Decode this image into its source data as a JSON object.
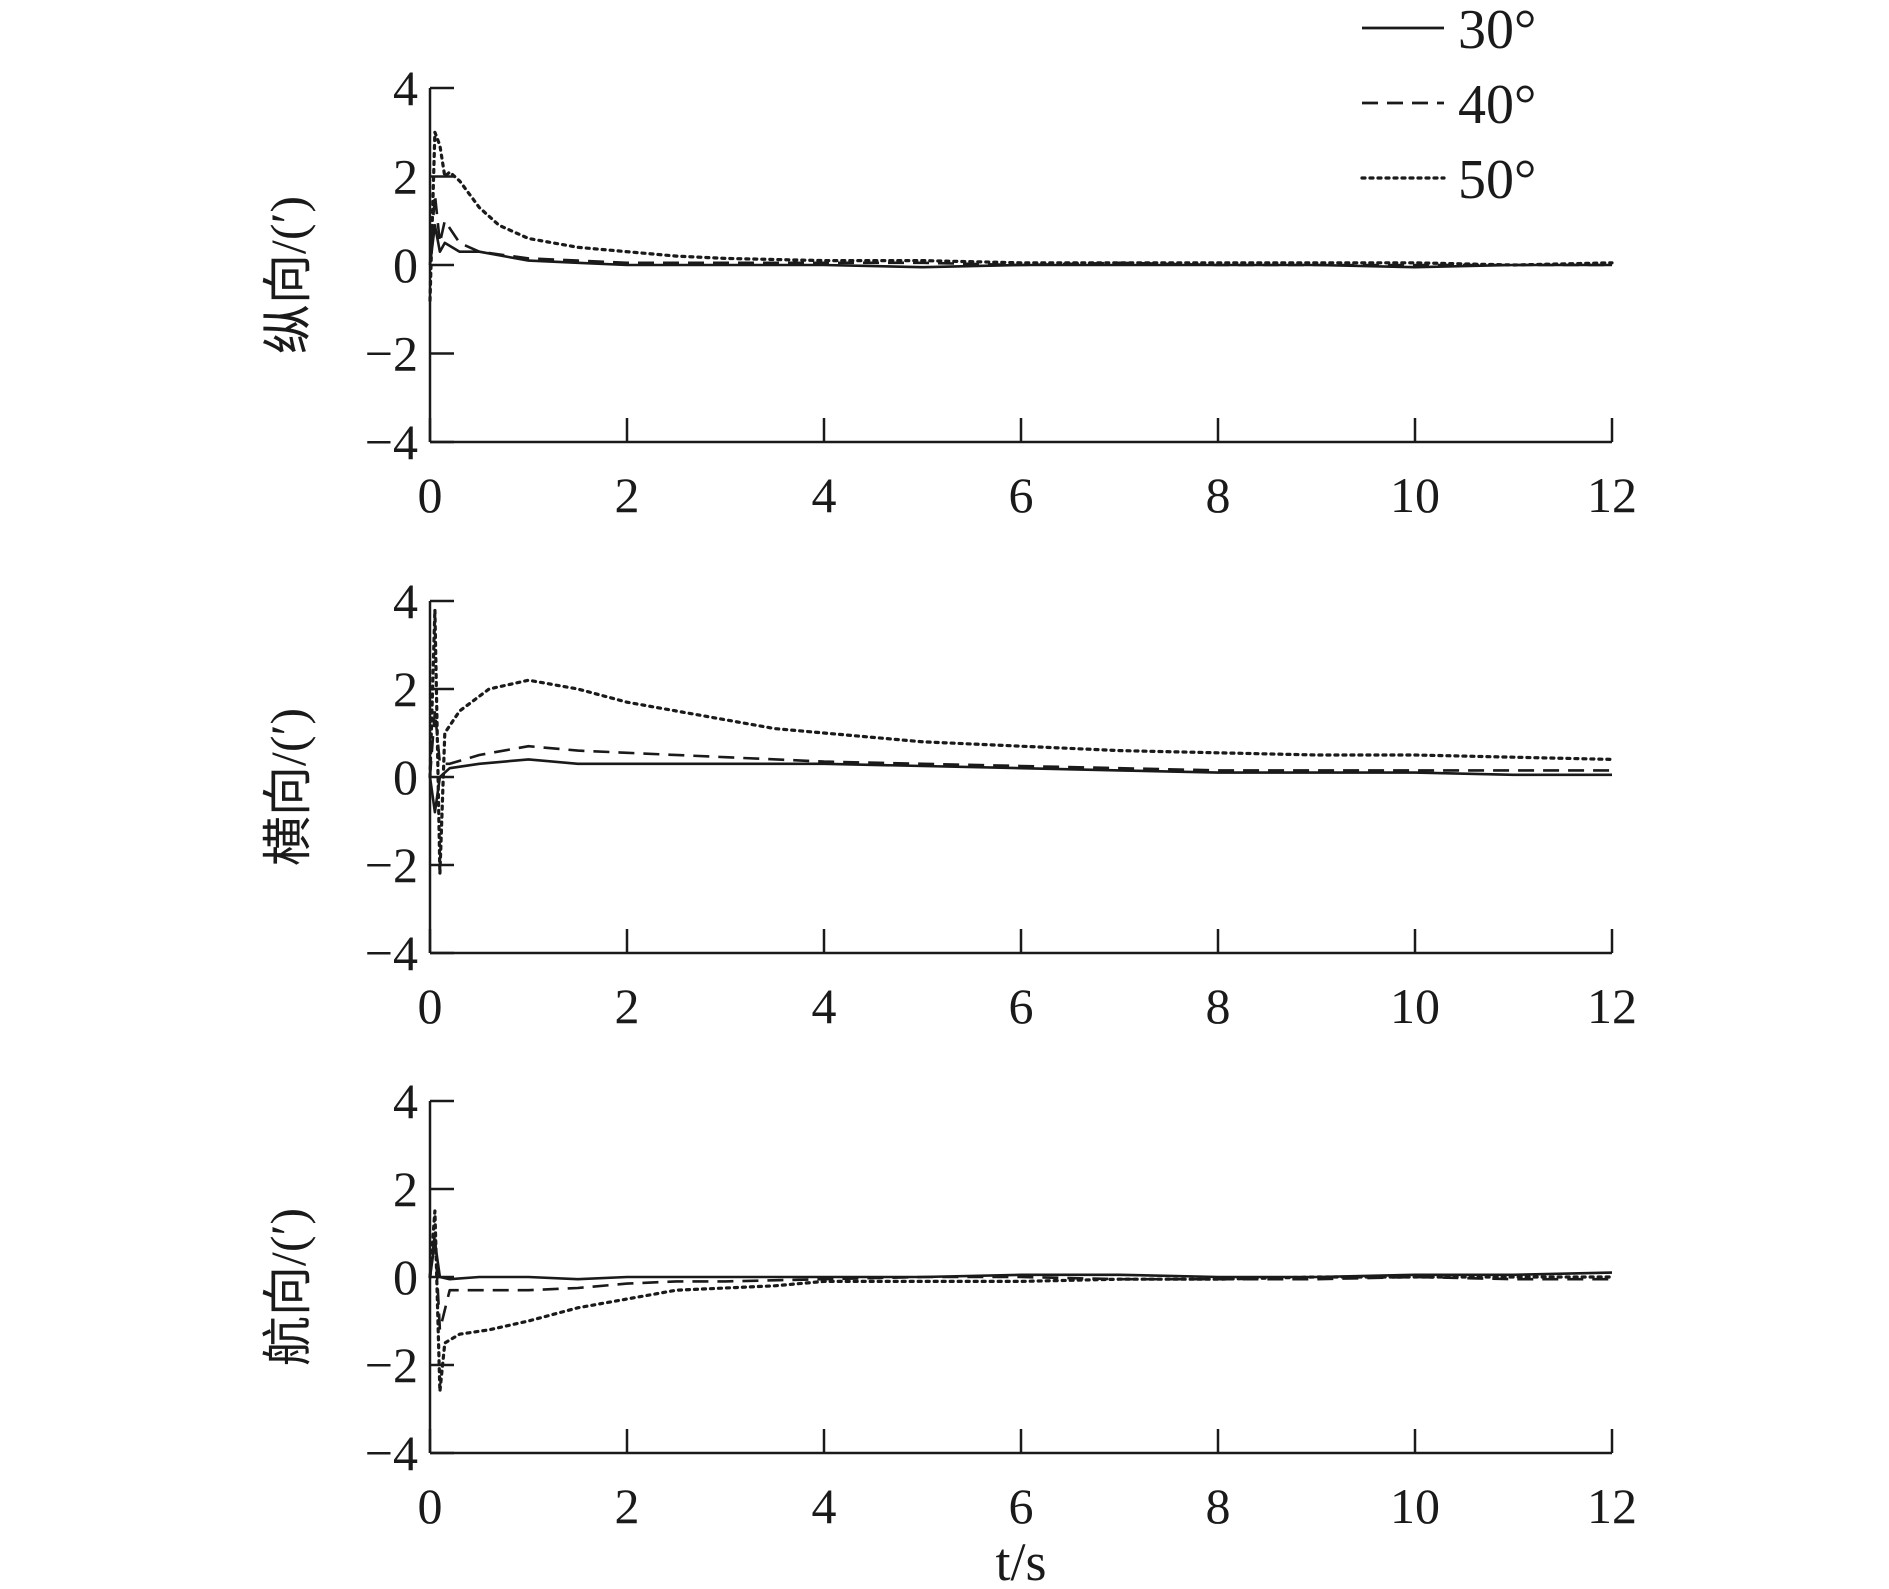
{
  "chart_data": [
    {
      "type": "line",
      "ylabel": "纵向/(′)",
      "xlim": [
        0,
        12
      ],
      "ylim": [
        -4,
        4
      ],
      "xticks": [
        "0",
        "2",
        "4",
        "6",
        "8",
        "10",
        "12"
      ],
      "yticks": [
        "4",
        "2",
        "0",
        "−2",
        "−4"
      ],
      "grid": false,
      "legend": {
        "position": "top-right",
        "entries": [
          "30°",
          "40°",
          "50°"
        ]
      },
      "series": [
        {
          "name": "30°",
          "style": "solid",
          "x": [
            0,
            0.05,
            0.1,
            0.15,
            0.3,
            0.5,
            1,
            1.5,
            2,
            3,
            4,
            5,
            6,
            7,
            8,
            9,
            10,
            11,
            12
          ],
          "y": [
            0,
            0.9,
            0.3,
            0.5,
            0.3,
            0.3,
            0.1,
            0.05,
            0.0,
            0.0,
            0.0,
            -0.05,
            0.0,
            0.0,
            0.0,
            0.0,
            -0.05,
            0.0,
            0.0
          ]
        },
        {
          "name": "40°",
          "style": "dashed",
          "x": [
            0,
            0.05,
            0.1,
            0.15,
            0.3,
            0.5,
            1,
            1.5,
            2,
            3,
            4,
            5,
            6,
            7,
            8,
            9,
            10,
            11,
            12
          ],
          "y": [
            0,
            1.6,
            0.5,
            1.0,
            0.5,
            0.3,
            0.15,
            0.1,
            0.05,
            0.05,
            0.05,
            0.05,
            0.0,
            0.05,
            0.0,
            0.0,
            0.0,
            0.0,
            0.0
          ]
        },
        {
          "name": "50°",
          "style": "dotted",
          "x": [
            0,
            0.05,
            0.1,
            0.15,
            0.2,
            0.3,
            0.5,
            0.7,
            1,
            1.5,
            2,
            2.5,
            3,
            4,
            5,
            6,
            7,
            8,
            9,
            10,
            11,
            12
          ],
          "y": [
            -0.8,
            3.0,
            2.7,
            2.0,
            2.1,
            1.9,
            1.3,
            0.9,
            0.6,
            0.4,
            0.3,
            0.2,
            0.15,
            0.1,
            0.1,
            0.05,
            0.05,
            0.05,
            0.05,
            0.05,
            0.0,
            0.05
          ]
        }
      ]
    },
    {
      "type": "line",
      "ylabel": "横向/(′)",
      "xlim": [
        0,
        12
      ],
      "ylim": [
        -4,
        4
      ],
      "xticks": [
        "0",
        "2",
        "4",
        "6",
        "8",
        "10",
        "12"
      ],
      "yticks": [
        "4",
        "2",
        "0",
        "−2",
        "−4"
      ],
      "grid": false,
      "series": [
        {
          "name": "30°",
          "style": "solid",
          "x": [
            0,
            0.05,
            0.1,
            0.2,
            0.5,
            1,
            1.5,
            2,
            3,
            4,
            5,
            6,
            7,
            8,
            9,
            10,
            11,
            12
          ],
          "y": [
            0,
            -0.8,
            0.0,
            0.2,
            0.3,
            0.4,
            0.3,
            0.3,
            0.3,
            0.3,
            0.25,
            0.2,
            0.15,
            0.1,
            0.1,
            0.1,
            0.05,
            0.05
          ]
        },
        {
          "name": "40°",
          "style": "dashed",
          "x": [
            0,
            0.05,
            0.1,
            0.2,
            0.5,
            1,
            1.5,
            2,
            3,
            4,
            5,
            6,
            7,
            8,
            9,
            10,
            11,
            12
          ],
          "y": [
            0,
            1.5,
            0.3,
            0.3,
            0.5,
            0.7,
            0.6,
            0.55,
            0.45,
            0.35,
            0.3,
            0.25,
            0.2,
            0.15,
            0.15,
            0.15,
            0.15,
            0.15
          ]
        },
        {
          "name": "50°",
          "style": "dotted",
          "x": [
            0,
            0.05,
            0.1,
            0.15,
            0.3,
            0.6,
            1,
            1.5,
            2,
            2.5,
            3,
            3.5,
            4,
            5,
            6,
            7,
            8,
            9,
            10,
            11,
            12
          ],
          "y": [
            0,
            3.8,
            -2.2,
            1.0,
            1.5,
            2.0,
            2.2,
            2.0,
            1.7,
            1.5,
            1.3,
            1.1,
            1.0,
            0.8,
            0.7,
            0.6,
            0.55,
            0.5,
            0.5,
            0.45,
            0.4
          ]
        }
      ]
    },
    {
      "type": "line",
      "ylabel": "航向/(′)",
      "xlabel": "t/s",
      "xlim": [
        0,
        12
      ],
      "ylim": [
        -4,
        4
      ],
      "xticks": [
        "0",
        "2",
        "4",
        "6",
        "8",
        "10",
        "12"
      ],
      "yticks": [
        "4",
        "2",
        "0",
        "−2",
        "−4"
      ],
      "grid": false,
      "series": [
        {
          "name": "30°",
          "style": "solid",
          "x": [
            0,
            0.05,
            0.1,
            0.2,
            0.5,
            1,
            1.5,
            2,
            3,
            4,
            5,
            6,
            7,
            8,
            9,
            10,
            11,
            12
          ],
          "y": [
            0,
            0.8,
            0.0,
            -0.05,
            0.0,
            0.0,
            -0.05,
            0.0,
            0.0,
            0.0,
            0.0,
            0.05,
            0.05,
            0.0,
            0.0,
            0.05,
            0.05,
            0.1
          ]
        },
        {
          "name": "40°",
          "style": "dashed",
          "x": [
            0,
            0.05,
            0.1,
            0.2,
            0.5,
            1,
            1.5,
            2,
            2.5,
            3,
            4,
            5,
            6,
            7,
            8,
            9,
            10,
            11,
            12
          ],
          "y": [
            0,
            1.0,
            -1.2,
            -0.3,
            -0.3,
            -0.3,
            -0.25,
            -0.15,
            -0.1,
            -0.1,
            -0.05,
            0.0,
            0.0,
            -0.05,
            -0.05,
            -0.05,
            0.0,
            -0.05,
            -0.05
          ]
        },
        {
          "name": "50°",
          "style": "dotted",
          "x": [
            0,
            0.05,
            0.1,
            0.15,
            0.3,
            0.6,
            1,
            1.5,
            2,
            2.5,
            3,
            3.5,
            4,
            5,
            6,
            7,
            8,
            9,
            10,
            11,
            12
          ],
          "y": [
            0,
            1.5,
            -2.6,
            -1.5,
            -1.3,
            -1.2,
            -1.0,
            -0.7,
            -0.5,
            -0.3,
            -0.25,
            -0.2,
            -0.1,
            -0.1,
            -0.1,
            -0.05,
            -0.05,
            0.0,
            0.0,
            0.0,
            0.0
          ]
        }
      ]
    }
  ]
}
